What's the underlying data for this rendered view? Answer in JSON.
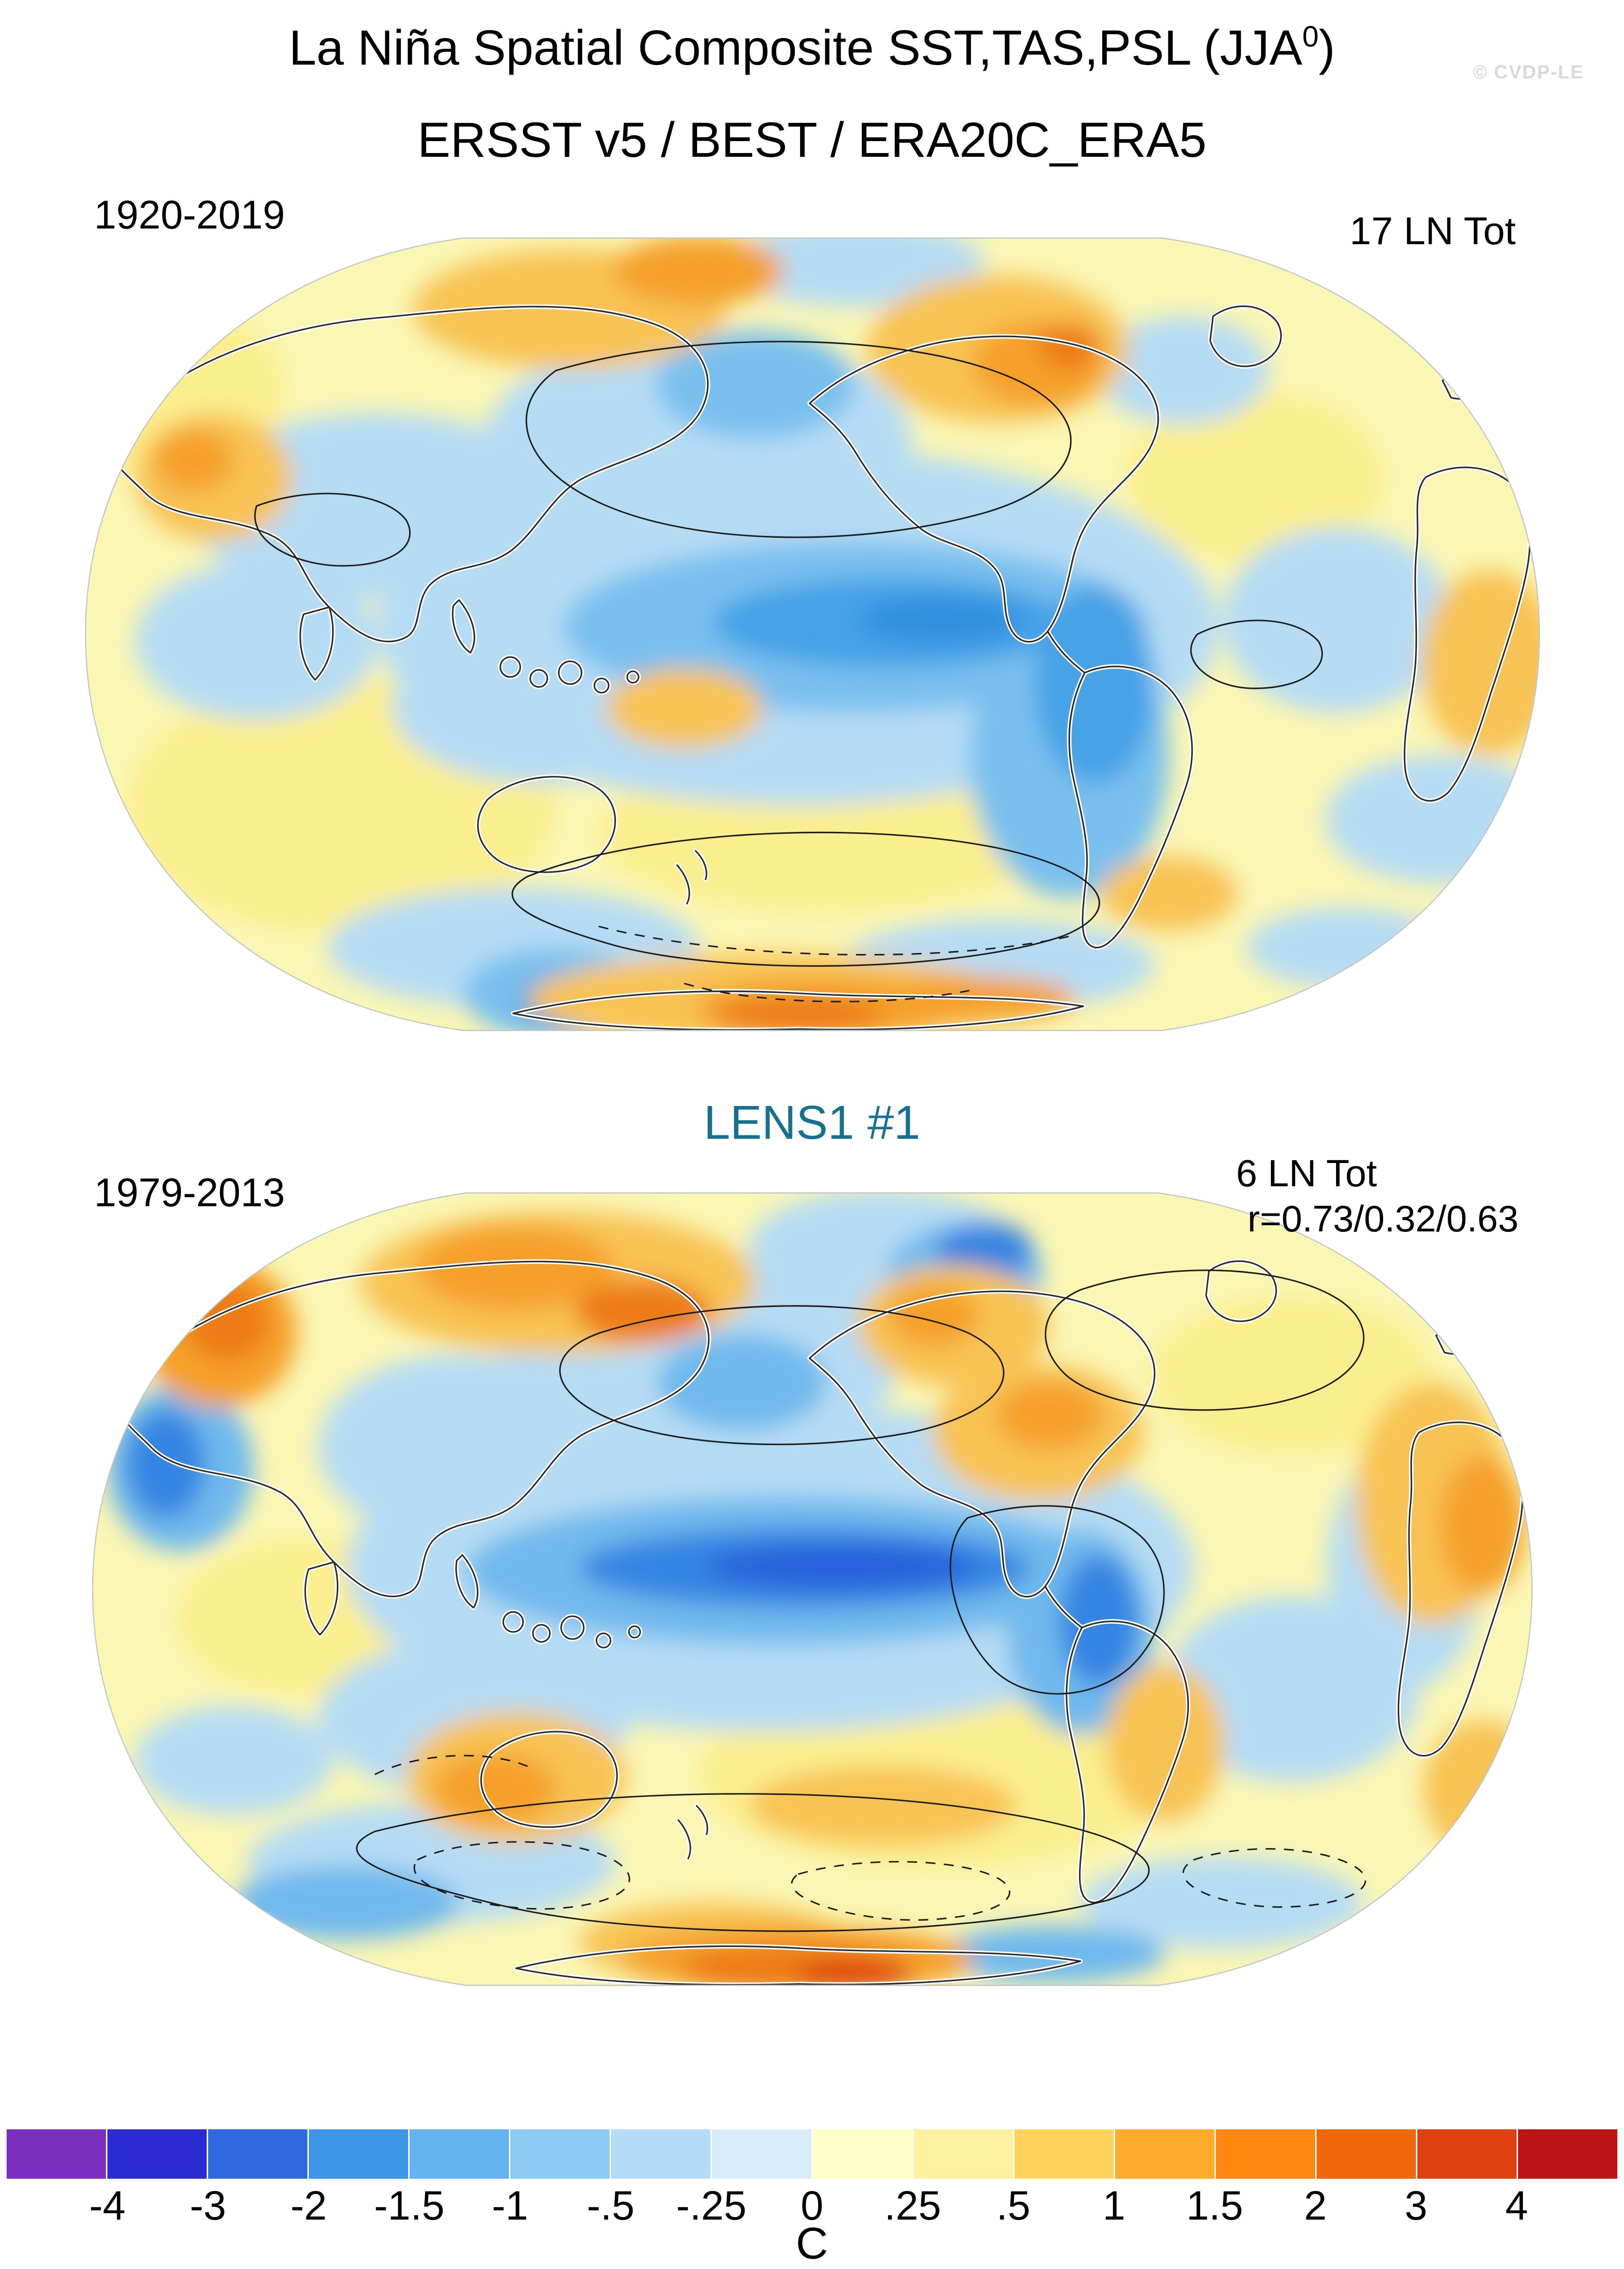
{
  "header": {
    "title_main": "La Niña Spatial Composite SST,TAS,PSL (JJA",
    "title_sup": "0",
    "title_close": ")",
    "subtitle": "ERSST v5 / BEST / ERA20C_ERA5",
    "watermark": "© CVDP-LE"
  },
  "panels": [
    {
      "name": "observations",
      "period": "1920-2019",
      "count": "17 LN Tot"
    },
    {
      "name": "model",
      "title": "LENS1 #1",
      "title_color": "#15728e",
      "period": "1979-2013",
      "count": "6 LN Tot",
      "correlation": "r=0.73/0.32/0.63"
    }
  ],
  "colorbar": {
    "unit": "C",
    "labels": [
      "-4",
      "-3",
      "-2",
      "-1.5",
      "-1",
      "-.5",
      "-.25",
      "0",
      ".25",
      ".5",
      "1",
      "1.5",
      "2",
      "3",
      "4"
    ],
    "colors": [
      "#7b2fbe",
      "#2b2bd4",
      "#2f6ae0",
      "#3e97ea",
      "#63b4f0",
      "#8fcaf5",
      "#b4dcf8",
      "#d8edfb",
      "#ffffc6",
      "#fff0a0",
      "#ffd35c",
      "#ffab2e",
      "#ff8712",
      "#ef680b",
      "#e04112",
      "#bd1414"
    ]
  },
  "chart_data": [
    {
      "type": "heatmap",
      "title": "ERSST v5 / BEST / ERA20C_ERA5",
      "figure_title": "La Niña Spatial Composite SST,TAS,PSL (JJA0)",
      "period": "1920-2019",
      "events_label": "17 LN Tot",
      "units": "C",
      "projection": "global oval (Robinson-style) map",
      "colorbar_position": "bottom",
      "contour_levels": [
        -4,
        -3,
        -2,
        -1.5,
        -1,
        -0.5,
        -0.25,
        0,
        0.25,
        0.5,
        1,
        1.5,
        2,
        3,
        4
      ],
      "notable_features": [
        "Cold anomaly tongue of -0.5 to -1 C across the central equatorial Pacific extending toward South America",
        "Broad weak cool anomalies (-0.25 to -0.5 C) over much of the Pacific and southern oceans",
        "Warm anomalies of 0.5 to 1.5 C over high-latitude Siberia and northern Canada",
        "Warm anomalies of 1 to 2 C along coastal Antarctica near the dateline",
        "Solid and dashed black overlay contours indicate the PSL composite pattern"
      ]
    },
    {
      "type": "heatmap",
      "title": "LENS1 #1",
      "period": "1979-2013",
      "events_label": "6 LN Tot",
      "pattern_correlation": "r=0.73/0.32/0.63",
      "units": "C",
      "projection": "global oval (Robinson-style) map",
      "colorbar_position": "bottom",
      "contour_levels": [
        -4,
        -3,
        -2,
        -1.5,
        -1,
        -0.5,
        -0.25,
        0,
        0.25,
        0.5,
        1,
        1.5,
        2,
        3,
        4
      ],
      "notable_features": [
        "Stronger cold tongue of -1 to -2 C along the equatorial Pacific",
        "Warm anomalies of 1 to 2 C over Siberia, western North America, Australia and northern Africa",
        "Strong warm anomalies up to 2-3 C along the Antarctic coast",
        "Cool anomalies over the Arctic, Middle East and southern oceans",
        "Dashed PSL contours over the southern mid-latitudes"
      ]
    }
  ]
}
